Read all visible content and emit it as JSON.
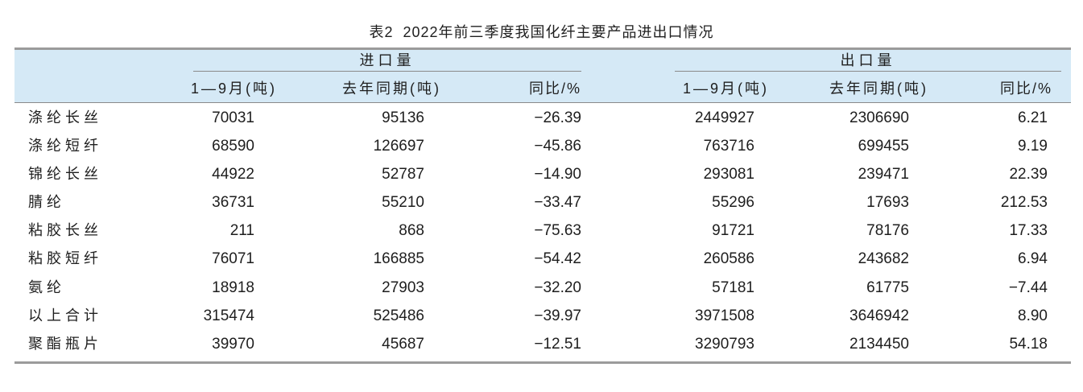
{
  "chart_data": {
    "type": "table",
    "title": "表2  2022年前三季度我国化纤主要产品进出口情况",
    "column_groups": [
      {
        "label": "进口量",
        "columns": [
          "1—9月(吨)",
          "去年同期(吨)",
          "同比/%"
        ]
      },
      {
        "label": "出口量",
        "columns": [
          "1—9月(吨)",
          "去年同期(吨)",
          "同比/%"
        ]
      }
    ],
    "rows": [
      {
        "label": "涤纶长丝",
        "values": [
          "70031",
          "95136",
          "−26.39",
          "2449927",
          "2306690",
          "6.21"
        ]
      },
      {
        "label": "涤纶短纤",
        "values": [
          "68590",
          "126697",
          "−45.86",
          "763716",
          "699455",
          "9.19"
        ]
      },
      {
        "label": "锦纶长丝",
        "values": [
          "44922",
          "52787",
          "−14.90",
          "293081",
          "239471",
          "22.39"
        ]
      },
      {
        "label": "腈纶",
        "values": [
          "36731",
          "55210",
          "−33.47",
          "55296",
          "17693",
          "212.53"
        ]
      },
      {
        "label": "粘胶长丝",
        "values": [
          "211",
          "868",
          "−75.63",
          "91721",
          "78176",
          "17.33"
        ]
      },
      {
        "label": "粘胶短纤",
        "values": [
          "76071",
          "166885",
          "−54.42",
          "260586",
          "243682",
          "6.94"
        ]
      },
      {
        "label": "氨纶",
        "values": [
          "18918",
          "27903",
          "−32.20",
          "57181",
          "61775",
          "−7.44"
        ]
      },
      {
        "label": "以上合计",
        "values": [
          "315474",
          "525486",
          "−39.97",
          "3971508",
          "3646942",
          "8.90"
        ]
      },
      {
        "label": "聚酯瓶片",
        "values": [
          "39970",
          "45687",
          "−12.51",
          "3290793",
          "2134450",
          "54.18"
        ]
      }
    ]
  },
  "colors": {
    "header_background": "#d5e9f6",
    "rule": "#9b9b9b",
    "text": "#1e1e1e"
  }
}
